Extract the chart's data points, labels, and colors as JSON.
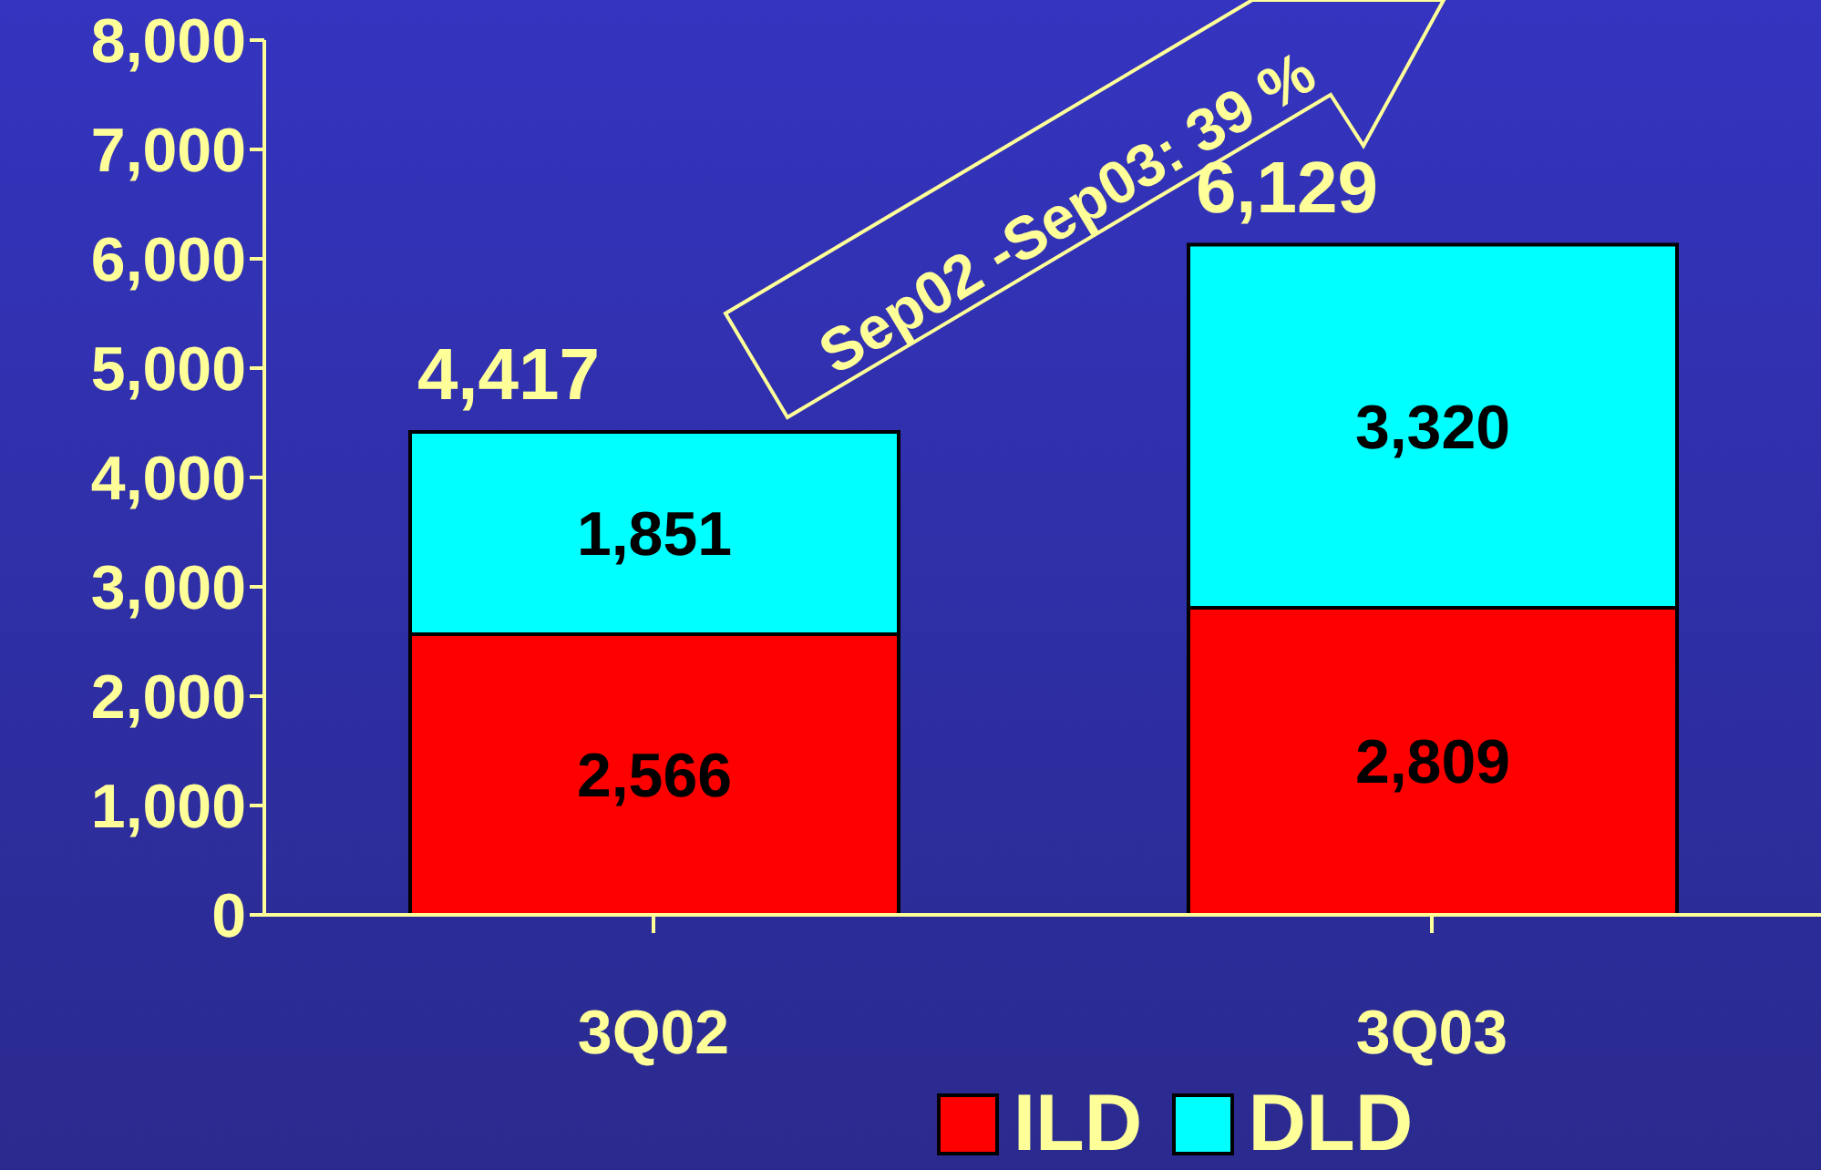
{
  "chart_data": {
    "type": "bar",
    "stacked": true,
    "categories": [
      "3Q02",
      "3Q03"
    ],
    "series": [
      {
        "name": "ILD",
        "color": "#ff0000",
        "values": [
          2566,
          2809
        ],
        "value_labels": [
          "2,566",
          "2,809"
        ]
      },
      {
        "name": "DLD",
        "color": "#00ffff",
        "values": [
          1851,
          3320
        ],
        "value_labels": [
          "1,851",
          "3,320"
        ]
      }
    ],
    "ylim": [
      0,
      8000
    ],
    "yticks": [
      {
        "value": 0,
        "label": "0"
      },
      {
        "value": 1000,
        "label": "1,000"
      },
      {
        "value": 2000,
        "label": "2,000"
      },
      {
        "value": 3000,
        "label": "3,000"
      },
      {
        "value": 4000,
        "label": "4,000"
      },
      {
        "value": 5000,
        "label": "5,000"
      },
      {
        "value": 6000,
        "label": "6,000"
      },
      {
        "value": 7000,
        "label": "7,000"
      },
      {
        "value": 8000,
        "label": "8,000"
      }
    ],
    "totals": [
      "4,417",
      "6,129"
    ],
    "grid": false,
    "legend": "bottom",
    "annotations": [
      "Sep02 -Sep03: 39 %"
    ]
  }
}
